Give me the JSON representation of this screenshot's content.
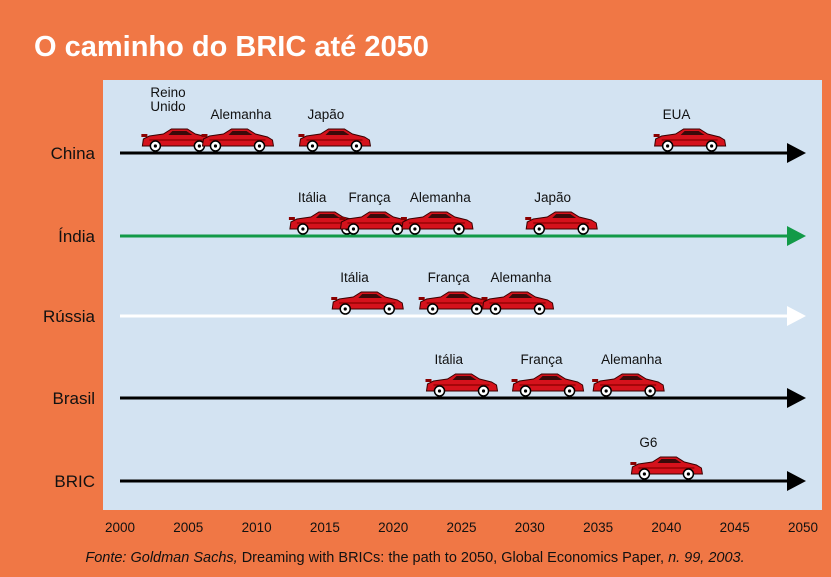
{
  "chart_data": {
    "type": "timeline",
    "title": "O caminho do BRIC até 2050",
    "xlim": [
      2000,
      2050
    ],
    "xticks": [
      2000,
      2005,
      2010,
      2015,
      2020,
      2025,
      2030,
      2035,
      2040,
      2045,
      2050
    ],
    "rows": [
      {
        "name": "China",
        "color": "#000000",
        "events": [
          {
            "label": [
              "Reino",
              "Unido"
            ],
            "year": 2004.2
          },
          {
            "label": "Alemanha",
            "year": 2008.6
          },
          {
            "label": "Japão",
            "year": 2015.7
          },
          {
            "label": "EUA",
            "year": 2041.7
          }
        ]
      },
      {
        "name": "Índia",
        "color": "#129a48",
        "events": [
          {
            "label": "Itália",
            "year": 2015
          },
          {
            "label": "França",
            "year": 2018.7
          },
          {
            "label": "Alemanha",
            "year": 2023.2
          },
          {
            "label": "Japão",
            "year": 2032.3
          }
        ]
      },
      {
        "name": "Rússia",
        "color": "#ffffff",
        "events": [
          {
            "label": "Itália",
            "year": 2018.1
          },
          {
            "label": "França",
            "year": 2024.5
          },
          {
            "label": "Alemanha",
            "year": 2029.1
          }
        ]
      },
      {
        "name": "Brasil",
        "color": "#000000",
        "events": [
          {
            "label": "Itália",
            "year": 2025
          },
          {
            "label": "França",
            "year": 2031.3
          },
          {
            "label": "Alemanha",
            "year": 2037.2
          }
        ]
      },
      {
        "name": "BRIC",
        "color": "#000000",
        "events": [
          {
            "label": "G6",
            "year": 2040
          }
        ]
      }
    ],
    "source": [
      {
        "text": "Fonte: Goldman Sachs,",
        "italic": true
      },
      {
        "text": "Dreaming with BRICs: the path to 2050, Global Economics Paper,",
        "italic": false
      },
      {
        "text": "n. 99, 2003.",
        "italic": true
      }
    ]
  }
}
